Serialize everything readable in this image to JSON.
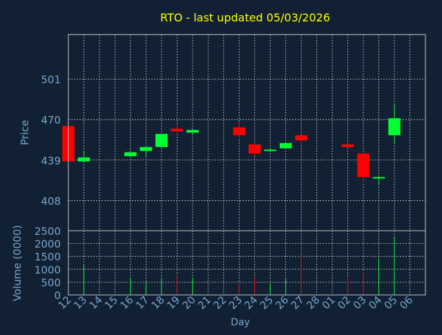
{
  "colors": {
    "background": "#112133",
    "axis_text": "#7aa5cc",
    "title": "#ffff00",
    "grid": "#c8c8c8",
    "up": "#00ff33",
    "down": "#ff0000",
    "frame": "#c8c8c8"
  },
  "chart_data": [
    {
      "type": "candlestick",
      "title": "RTO - last updated 05/03/2026",
      "ylabel": "Price",
      "xlabel": "",
      "ylim": [
        385,
        535
      ],
      "yticks": [
        408,
        439,
        470,
        501
      ],
      "grid": true,
      "series": [
        {
          "date": "12",
          "open": 465,
          "high": 465,
          "low": 438,
          "close": 438
        },
        {
          "date": "13",
          "open": 438,
          "high": 446,
          "low": 437,
          "close": 441
        },
        {
          "date": "16",
          "open": 442,
          "high": 445,
          "low": 441,
          "close": 445
        },
        {
          "date": "17",
          "open": 446,
          "high": 449,
          "low": 442,
          "close": 449
        },
        {
          "date": "18",
          "open": 449,
          "high": 459,
          "low": 449,
          "close": 459
        },
        {
          "date": "19",
          "open": 463,
          "high": 465,
          "low": 460,
          "close": 461
        },
        {
          "date": "20",
          "open": 460,
          "high": 463,
          "low": 458,
          "close": 462
        },
        {
          "date": "23",
          "open": 464,
          "high": 468,
          "low": 456,
          "close": 458
        },
        {
          "date": "24",
          "open": 451,
          "high": 451,
          "low": 442,
          "close": 444
        },
        {
          "date": "25",
          "open": 446,
          "high": 448,
          "low": 446,
          "close": 447
        },
        {
          "date": "26",
          "open": 448,
          "high": 452,
          "low": 448,
          "close": 452
        },
        {
          "date": "27",
          "open": 458,
          "high": 458,
          "low": 452,
          "close": 454
        },
        {
          "date": "02",
          "open": 451,
          "high": 454,
          "low": 448,
          "close": 449
        },
        {
          "date": "03",
          "open": 444,
          "high": 445,
          "low": 422,
          "close": 426
        },
        {
          "date": "04",
          "open": 425,
          "high": 427,
          "low": 420,
          "close": 426
        },
        {
          "date": "05",
          "open": 458,
          "high": 482,
          "low": 452,
          "close": 471
        }
      ]
    },
    {
      "type": "bar",
      "title": "",
      "ylabel": "Volume (0000)",
      "xlabel": "Day",
      "ylim": [
        0,
        2500
      ],
      "yticks": [
        0,
        500,
        1000,
        1500,
        2000,
        2500
      ],
      "grid": true,
      "categories": [
        "12",
        "13",
        "14",
        "15",
        "16",
        "17",
        "18",
        "19",
        "20",
        "21",
        "22",
        "23",
        "24",
        "25",
        "26",
        "27",
        "28",
        "01",
        "02",
        "03",
        "04",
        "05",
        "06"
      ],
      "values": [
        {
          "date": "12",
          "volume": 0,
          "dir": "down"
        },
        {
          "date": "13",
          "volume": 1150,
          "dir": "up"
        },
        {
          "date": "16",
          "volume": 650,
          "dir": "up"
        },
        {
          "date": "17",
          "volume": 500,
          "dir": "up"
        },
        {
          "date": "18",
          "volume": 650,
          "dir": "up"
        },
        {
          "date": "19",
          "volume": 800,
          "dir": "down"
        },
        {
          "date": "20",
          "volume": 650,
          "dir": "up"
        },
        {
          "date": "23",
          "volume": 450,
          "dir": "down"
        },
        {
          "date": "24",
          "volume": 650,
          "dir": "down"
        },
        {
          "date": "25",
          "volume": 450,
          "dir": "up"
        },
        {
          "date": "26",
          "volume": 650,
          "dir": "up"
        },
        {
          "date": "27",
          "volume": 1600,
          "dir": "down"
        },
        {
          "date": "02",
          "volume": 700,
          "dir": "down"
        },
        {
          "date": "03",
          "volume": 900,
          "dir": "down"
        },
        {
          "date": "04",
          "volume": 1450,
          "dir": "up"
        },
        {
          "date": "05",
          "volume": 2250,
          "dir": "up"
        }
      ]
    }
  ]
}
